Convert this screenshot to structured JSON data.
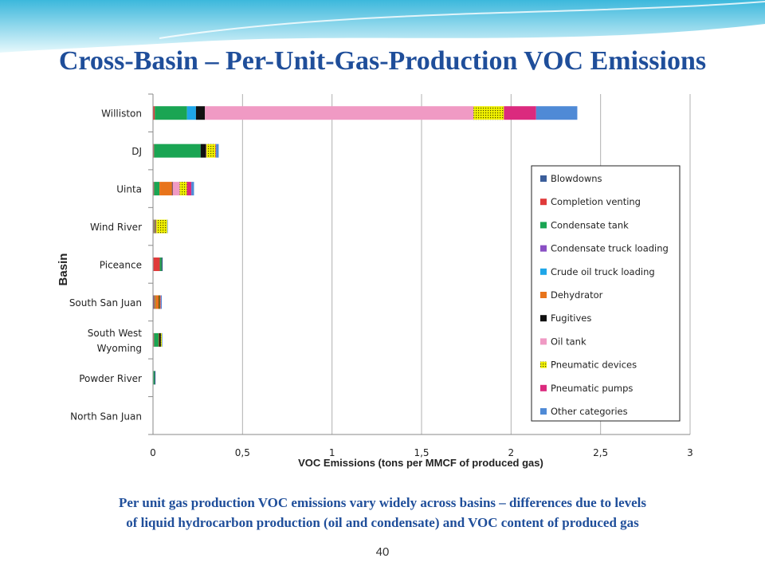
{
  "slide": {
    "title": "Cross-Basin – Per-Unit-Gas-Production VOC Emissions",
    "caption_line1": "Per unit gas production VOC emissions vary widely across basins – differences due to levels",
    "caption_line2": "of liquid hydrocarbon production (oil and condensate) and VOC content of produced gas",
    "page_number": "40"
  },
  "chart_data": {
    "type": "bar",
    "orientation": "horizontal",
    "stacked": true,
    "xlabel": "VOC Emissions (tons per MMCF of produced gas)",
    "ylabel": "Basin",
    "xlim": [
      0,
      3
    ],
    "xticks": [
      "0",
      "0,5",
      "1",
      "1,5",
      "2",
      "2,5",
      "3"
    ],
    "grid": true,
    "legend_position": "right",
    "categories": [
      "Williston",
      "DJ",
      "Uinta",
      "Wind River",
      "Piceance",
      "South San Juan",
      "South West Wyoming",
      "Powder River",
      "North San Juan"
    ],
    "category_display": [
      [
        "Williston"
      ],
      [
        "DJ"
      ],
      [
        "Uinta"
      ],
      [
        "Wind River"
      ],
      [
        "Piceance"
      ],
      [
        "South San Juan"
      ],
      [
        "South West",
        "Wyoming"
      ],
      [
        "Powder River"
      ],
      [
        "North San Juan"
      ]
    ],
    "series": [
      {
        "name": "Blowdowns",
        "color": "#3b5e9a",
        "values": [
          0.0,
          0.003,
          0.003,
          0.003,
          0.003,
          0.005,
          0.003,
          0.003,
          0.0
        ]
      },
      {
        "name": "Completion venting",
        "color": "#e03a3a",
        "values": [
          0.01,
          0.003,
          0.003,
          0.003,
          0.035,
          0.005,
          0.003,
          0.0,
          0.0
        ]
      },
      {
        "name": "Condensate tank",
        "color": "#1aa553",
        "values": [
          0.18,
          0.26,
          0.03,
          0.004,
          0.01,
          0.003,
          0.025,
          0.006,
          0.0
        ]
      },
      {
        "name": "Condensate truck loading",
        "color": "#8a4fc4",
        "values": [
          0.0,
          0.0,
          0.0,
          0.0,
          0.0,
          0.0,
          0.0,
          0.0,
          0.0
        ]
      },
      {
        "name": "Crude oil truck loading",
        "color": "#1ea6e8",
        "values": [
          0.05,
          0.0,
          0.0,
          0.0,
          0.0,
          0.0,
          0.0,
          0.0,
          0.0
        ]
      },
      {
        "name": "Dehydrator",
        "color": "#e8741b",
        "values": [
          0.0,
          0.0,
          0.07,
          0.003,
          0.0,
          0.02,
          0.003,
          0.0,
          0.0
        ]
      },
      {
        "name": "Fugitives",
        "color": "#111111",
        "values": [
          0.05,
          0.03,
          0.003,
          0.003,
          0.003,
          0.005,
          0.01,
          0.002,
          0.0
        ]
      },
      {
        "name": "Oil tank",
        "color": "#f09ac4",
        "values": [
          1.5,
          0.003,
          0.04,
          0.003,
          0.0,
          0.0,
          0.0,
          0.0,
          0.0
        ]
      },
      {
        "name": "Pneumatic devices",
        "color": "#f2f200",
        "values": [
          0.17,
          0.05,
          0.04,
          0.06,
          0.0,
          0.003,
          0.005,
          0.0,
          0.0
        ]
      },
      {
        "name": "Pneumatic pumps",
        "color": "#db2a7e",
        "values": [
          0.18,
          0.003,
          0.025,
          0.0,
          0.0,
          0.003,
          0.0,
          0.0,
          0.0
        ]
      },
      {
        "name": "Other categories",
        "color": "#4f8ad6",
        "values": [
          0.23,
          0.015,
          0.015,
          0.003,
          0.003,
          0.005,
          0.003,
          0.003,
          0.0
        ]
      }
    ]
  },
  "colors": {
    "title": "#1f4e9a",
    "caption": "#1f4e9a",
    "banner_light": "#d6f3f9",
    "banner_mid": "#7fd6ea",
    "grid": "#b0b0b0"
  }
}
